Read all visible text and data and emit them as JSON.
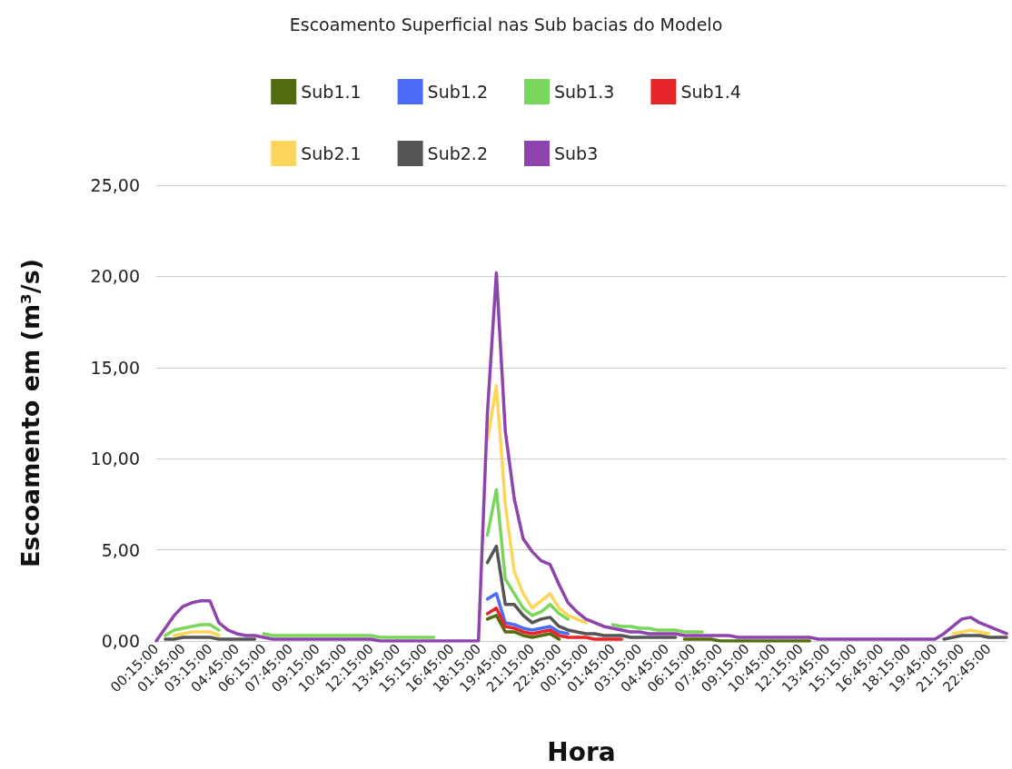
{
  "chart_data": {
    "type": "line",
    "title": "Escoamento Superficial nas Sub bacias do Modelo",
    "xlabel": "Hora",
    "ylabel": "Escoamento em (m³/s)",
    "categories": [
      "00:15:00",
      null,
      null,
      "01:45:00",
      null,
      null,
      "03:15:00",
      null,
      null,
      "04:45:00",
      null,
      null,
      "06:15:00",
      null,
      null,
      "07:45:00",
      null,
      null,
      "09:15:00",
      null,
      null,
      "10:45:00",
      null,
      null,
      "12:15:00",
      null,
      null,
      "13:45:00",
      null,
      null,
      "15:15:00",
      null,
      null,
      "16:45:00",
      null,
      null,
      "18:15:00",
      null,
      null,
      "19:45:00",
      null,
      null,
      "21:15:00",
      null,
      null,
      "22:45:00",
      null,
      null,
      "00:15:00",
      null,
      null,
      "01:45:00",
      null,
      null,
      "03:15:00",
      null,
      null,
      "04:45:00",
      null,
      null,
      "06:15:00",
      null,
      null,
      "07:45:00",
      null,
      null,
      "09:15:00",
      null,
      null,
      "10:45:00",
      null,
      null,
      "12:15:00",
      null,
      null,
      "13:45:00",
      null,
      null,
      "15:15:00",
      null,
      null,
      "16:45:00",
      null,
      null,
      "18:15:00",
      null,
      null,
      "19:45:00",
      null,
      null,
      "21:15:00",
      null,
      null,
      "22:45:00",
      null,
      null
    ],
    "series": [
      {
        "name": "Sub1.1",
        "color": "#556b10",
        "values": [
          null,
          null,
          null,
          null,
          null,
          null,
          null,
          null,
          null,
          null,
          null,
          null,
          null,
          null,
          null,
          null,
          null,
          null,
          null,
          null,
          null,
          null,
          null,
          null,
          null,
          null,
          null,
          null,
          null,
          null,
          null,
          null,
          null,
          null,
          null,
          null,
          null,
          1.2,
          1.4,
          0.5,
          0.5,
          0.3,
          0.2,
          0.3,
          0.4,
          0.1,
          null,
          null,
          null,
          null,
          null,
          null,
          null,
          null,
          null,
          null,
          null,
          null,
          null,
          0.1,
          0.1,
          0.1,
          0.1,
          0,
          0,
          0,
          0,
          0,
          0,
          0,
          0,
          0,
          0,
          0,
          null,
          null,
          null,
          null,
          null,
          null,
          null,
          null,
          null,
          null,
          null,
          null,
          null,
          null,
          null,
          null,
          null,
          null,
          null,
          null,
          null,
          null
        ]
      },
      {
        "name": "Sub1.2",
        "color": "#4a6cf7",
        "values": [
          null,
          null,
          null,
          null,
          null,
          null,
          null,
          null,
          null,
          null,
          null,
          null,
          null,
          null,
          null,
          null,
          null,
          null,
          null,
          null,
          null,
          null,
          null,
          null,
          null,
          null,
          null,
          null,
          null,
          null,
          null,
          null,
          null,
          null,
          null,
          null,
          null,
          2.3,
          2.6,
          1.0,
          0.9,
          0.7,
          0.6,
          0.7,
          0.8,
          0.5,
          0.4,
          null,
          null,
          null,
          null,
          null,
          null,
          null,
          null,
          null,
          null,
          null,
          null,
          null,
          null,
          null,
          null,
          null,
          null,
          null,
          null,
          null,
          null,
          null,
          null,
          null,
          null,
          null,
          null,
          null,
          null,
          null,
          null,
          null,
          null,
          null,
          null,
          null,
          null,
          null,
          null,
          null,
          null,
          null,
          null,
          null,
          null,
          null,
          null,
          null
        ]
      },
      {
        "name": "Sub1.3",
        "color": "#7ad65a",
        "values": [
          null,
          0.3,
          0.6,
          0.7,
          0.8,
          0.9,
          0.9,
          0.6,
          null,
          null,
          null,
          null,
          0.4,
          0.3,
          0.3,
          0.3,
          0.3,
          0.3,
          0.3,
          0.3,
          0.3,
          0.3,
          0.3,
          0.3,
          0.3,
          0.2,
          0.2,
          0.2,
          0.2,
          0.2,
          0.2,
          0.2,
          null,
          null,
          null,
          null,
          null,
          5.8,
          8.3,
          3.4,
          2.6,
          1.8,
          1.4,
          1.6,
          2.0,
          1.5,
          1.2,
          null,
          null,
          null,
          null,
          0.9,
          0.8,
          0.8,
          0.7,
          0.7,
          0.6,
          0.6,
          0.6,
          0.5,
          0.5,
          0.5,
          null,
          null,
          null,
          null,
          null,
          null,
          null,
          null,
          null,
          null,
          null,
          null,
          null,
          null,
          null,
          null,
          null,
          null,
          null,
          null,
          null,
          null,
          null,
          null,
          null,
          null,
          null,
          null,
          null,
          null,
          null,
          null,
          null,
          null
        ]
      },
      {
        "name": "Sub1.4",
        "color": "#e8262a",
        "values": [
          null,
          null,
          null,
          null,
          null,
          null,
          null,
          null,
          null,
          null,
          null,
          null,
          null,
          null,
          null,
          null,
          null,
          null,
          null,
          null,
          null,
          null,
          null,
          null,
          null,
          null,
          null,
          null,
          null,
          null,
          null,
          null,
          null,
          null,
          null,
          null,
          null,
          1.5,
          1.8,
          0.8,
          0.7,
          0.5,
          0.4,
          0.5,
          0.6,
          0.3,
          0.2,
          0.2,
          0.2,
          0.1,
          0.1,
          0.1,
          0.1,
          null,
          null,
          null,
          null,
          null,
          null,
          null,
          null,
          null,
          null,
          null,
          null,
          null,
          null,
          null,
          null,
          null,
          null,
          null,
          null,
          null,
          null,
          null,
          null,
          null,
          null,
          null,
          null,
          null,
          null,
          null,
          null,
          null,
          null,
          null,
          null,
          null,
          null,
          null,
          null,
          null,
          null,
          null
        ]
      },
      {
        "name": "Sub2.1",
        "color": "#fbd65a",
        "values": [
          null,
          null,
          0.3,
          0.4,
          0.5,
          0.5,
          0.5,
          0.3,
          null,
          null,
          null,
          null,
          null,
          null,
          null,
          null,
          null,
          null,
          null,
          null,
          null,
          null,
          null,
          null,
          null,
          null,
          null,
          null,
          null,
          null,
          null,
          null,
          null,
          null,
          null,
          null,
          null,
          11.0,
          14.0,
          7.5,
          3.8,
          2.6,
          1.8,
          2.2,
          2.6,
          1.8,
          1.4,
          1.2,
          1.0,
          null,
          null,
          null,
          null,
          null,
          null,
          null,
          null,
          null,
          null,
          null,
          null,
          null,
          null,
          null,
          null,
          null,
          null,
          null,
          null,
          null,
          null,
          null,
          null,
          null,
          null,
          null,
          null,
          null,
          null,
          null,
          null,
          null,
          null,
          null,
          null,
          null,
          null,
          null,
          null,
          0.4,
          0.5,
          0.6,
          0.5,
          0.4,
          null,
          null
        ]
      },
      {
        "name": "Sub2.2",
        "color": "#555555",
        "values": [
          null,
          0.1,
          0.1,
          0.2,
          0.2,
          0.2,
          0.2,
          0.1,
          0.1,
          0.1,
          0.1,
          0.1,
          null,
          null,
          null,
          null,
          null,
          null,
          null,
          null,
          null,
          null,
          null,
          null,
          null,
          null,
          null,
          null,
          null,
          null,
          null,
          null,
          null,
          null,
          null,
          null,
          null,
          4.3,
          5.2,
          2.0,
          2.0,
          1.4,
          1.0,
          1.2,
          1.3,
          0.8,
          0.6,
          0.5,
          0.4,
          0.4,
          0.3,
          0.3,
          0.3,
          0.2,
          0.2,
          0.2,
          0.2,
          0.2,
          0.2,
          null,
          null,
          null,
          null,
          null,
          null,
          null,
          null,
          null,
          null,
          null,
          null,
          null,
          null,
          null,
          null,
          null,
          null,
          null,
          null,
          null,
          null,
          null,
          null,
          null,
          null,
          null,
          null,
          null,
          0.1,
          0.2,
          0.3,
          0.3,
          0.3,
          0.2,
          0.2,
          0.2
        ]
      },
      {
        "name": "Sub3",
        "color": "#8e44ad",
        "values": [
          0,
          0.7,
          1.4,
          1.9,
          2.1,
          2.2,
          2.2,
          1.0,
          0.6,
          0.4,
          0.3,
          0.3,
          0.2,
          0.1,
          0.1,
          0.1,
          0.1,
          0.1,
          0.1,
          0.1,
          0.1,
          0.1,
          0.1,
          0.1,
          0.1,
          0,
          0,
          0,
          0,
          0,
          0,
          0,
          0,
          0,
          0,
          0,
          0,
          12.5,
          20.2,
          11.5,
          7.8,
          5.6,
          4.9,
          4.4,
          4.2,
          3.1,
          2.1,
          1.6,
          1.2,
          1.0,
          0.8,
          0.7,
          0.6,
          0.5,
          0.5,
          0.4,
          0.4,
          0.4,
          0.4,
          0.3,
          0.3,
          0.3,
          0.3,
          0.3,
          0.3,
          0.2,
          0.2,
          0.2,
          0.2,
          0.2,
          0.2,
          0.2,
          0.2,
          0.2,
          0.1,
          0.1,
          0.1,
          0.1,
          0.1,
          0.1,
          0.1,
          0.1,
          0.1,
          0.1,
          0.1,
          0.1,
          0.1,
          0.1,
          0.4,
          0.8,
          1.2,
          1.3,
          1.0,
          0.8,
          0.6,
          0.4
        ]
      }
    ],
    "ylim": [
      0,
      25
    ],
    "yticks": [
      {
        "value": 0,
        "label": "0,00"
      },
      {
        "value": 5,
        "label": "5,00"
      },
      {
        "value": 10,
        "label": "10,00"
      },
      {
        "value": 15,
        "label": "15,00"
      },
      {
        "value": 20,
        "label": "20,00"
      },
      {
        "value": 25,
        "label": "25,00"
      }
    ],
    "grid": "y",
    "legend": "top",
    "marker": "none",
    "line_style": "solid"
  }
}
